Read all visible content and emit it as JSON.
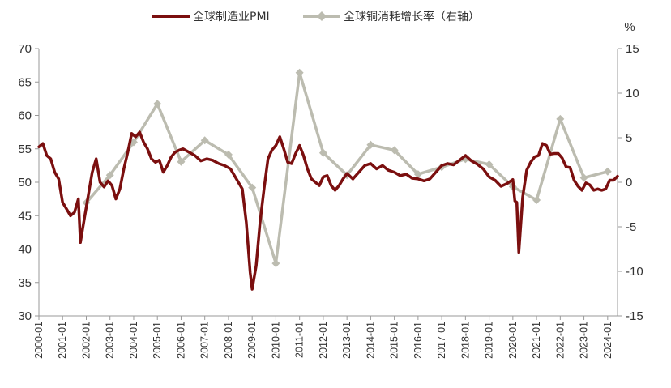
{
  "chart_data": {
    "type": "line",
    "legend": {
      "placement": "top"
    },
    "grid": false,
    "y_left": {
      "min": 30,
      "max": 70,
      "ticks": [
        30,
        35,
        40,
        45,
        50,
        55,
        60,
        65,
        70
      ]
    },
    "y_right": {
      "min": -15,
      "max": 15,
      "ticks": [
        -15,
        -10,
        -5,
        0,
        5,
        10,
        15
      ],
      "unit": "%"
    },
    "x": {
      "start": "2000-01",
      "end": "2024-06",
      "ticks": [
        "2000-01",
        "2001-01",
        "2002-01",
        "2003-01",
        "2004-01",
        "2005-01",
        "2006-01",
        "2007-01",
        "2008-01",
        "2009-01",
        "2010-01",
        "2011-01",
        "2012-01",
        "2013-01",
        "2014-01",
        "2015-01",
        "2016-01",
        "2017-01",
        "2018-01",
        "2019-01",
        "2020-01",
        "2021-01",
        "2022-01",
        "2023-01",
        "2024-01"
      ]
    },
    "series": [
      {
        "name": "全球制造业PMI",
        "axis": "left",
        "color": "#7b0f0f",
        "points": [
          [
            "2000-01",
            55.3
          ],
          [
            "2000-03",
            55.8
          ],
          [
            "2000-05",
            54.0
          ],
          [
            "2000-07",
            53.5
          ],
          [
            "2000-09",
            51.5
          ],
          [
            "2000-11",
            50.5
          ],
          [
            "2001-01",
            47.0
          ],
          [
            "2001-03",
            46.0
          ],
          [
            "2001-05",
            45.0
          ],
          [
            "2001-07",
            45.5
          ],
          [
            "2001-09",
            47.5
          ],
          [
            "2001-10",
            41.0
          ],
          [
            "2001-12",
            44.5
          ],
          [
            "2002-02",
            48.0
          ],
          [
            "2002-04",
            51.5
          ],
          [
            "2002-06",
            53.5
          ],
          [
            "2002-08",
            50.0
          ],
          [
            "2002-10",
            49.3
          ],
          [
            "2002-12",
            50.2
          ],
          [
            "2003-02",
            49.5
          ],
          [
            "2003-04",
            47.5
          ],
          [
            "2003-06",
            49.0
          ],
          [
            "2003-08",
            52.0
          ],
          [
            "2003-10",
            54.5
          ],
          [
            "2003-12",
            57.3
          ],
          [
            "2004-02",
            56.8
          ],
          [
            "2004-04",
            57.5
          ],
          [
            "2004-06",
            56.0
          ],
          [
            "2004-08",
            55.0
          ],
          [
            "2004-10",
            53.5
          ],
          [
            "2004-12",
            53.0
          ],
          [
            "2005-02",
            53.3
          ],
          [
            "2005-04",
            51.5
          ],
          [
            "2005-06",
            52.5
          ],
          [
            "2005-08",
            53.8
          ],
          [
            "2005-10",
            54.5
          ],
          [
            "2005-12",
            54.8
          ],
          [
            "2006-02",
            55.0
          ],
          [
            "2006-05",
            54.5
          ],
          [
            "2006-08",
            54.0
          ],
          [
            "2006-11",
            53.2
          ],
          [
            "2007-02",
            53.5
          ],
          [
            "2007-05",
            53.3
          ],
          [
            "2007-08",
            52.8
          ],
          [
            "2007-11",
            52.5
          ],
          [
            "2008-02",
            52.0
          ],
          [
            "2008-05",
            50.5
          ],
          [
            "2008-08",
            49.0
          ],
          [
            "2008-10",
            44.0
          ],
          [
            "2008-12",
            36.5
          ],
          [
            "2009-01",
            34.0
          ],
          [
            "2009-03",
            37.5
          ],
          [
            "2009-05",
            44.0
          ],
          [
            "2009-07",
            49.0
          ],
          [
            "2009-09",
            53.5
          ],
          [
            "2009-11",
            54.8
          ],
          [
            "2010-01",
            55.5
          ],
          [
            "2010-03",
            56.8
          ],
          [
            "2010-05",
            55.0
          ],
          [
            "2010-07",
            53.0
          ],
          [
            "2010-09",
            52.8
          ],
          [
            "2010-11",
            54.3
          ],
          [
            "2011-01",
            55.5
          ],
          [
            "2011-03",
            54.0
          ],
          [
            "2011-05",
            52.0
          ],
          [
            "2011-07",
            50.5
          ],
          [
            "2011-09",
            50.0
          ],
          [
            "2011-11",
            49.5
          ],
          [
            "2012-01",
            50.8
          ],
          [
            "2012-03",
            51.0
          ],
          [
            "2012-05",
            49.5
          ],
          [
            "2012-07",
            48.8
          ],
          [
            "2012-09",
            49.5
          ],
          [
            "2012-11",
            50.5
          ],
          [
            "2013-01",
            51.3
          ],
          [
            "2013-04",
            50.5
          ],
          [
            "2013-07",
            51.5
          ],
          [
            "2013-10",
            52.5
          ],
          [
            "2014-01",
            52.8
          ],
          [
            "2014-04",
            52.0
          ],
          [
            "2014-07",
            52.5
          ],
          [
            "2014-10",
            51.8
          ],
          [
            "2015-01",
            51.5
          ],
          [
            "2015-04",
            51.0
          ],
          [
            "2015-07",
            51.2
          ],
          [
            "2015-10",
            50.6
          ],
          [
            "2016-01",
            50.5
          ],
          [
            "2016-04",
            50.2
          ],
          [
            "2016-07",
            50.5
          ],
          [
            "2016-10",
            51.5
          ],
          [
            "2017-01",
            52.5
          ],
          [
            "2017-04",
            52.8
          ],
          [
            "2017-07",
            52.6
          ],
          [
            "2017-10",
            53.3
          ],
          [
            "2018-01",
            54.0
          ],
          [
            "2018-04",
            53.2
          ],
          [
            "2018-07",
            52.7
          ],
          [
            "2018-10",
            52.0
          ],
          [
            "2019-01",
            50.8
          ],
          [
            "2019-04",
            50.3
          ],
          [
            "2019-07",
            49.4
          ],
          [
            "2019-10",
            49.8
          ],
          [
            "2020-01",
            50.4
          ],
          [
            "2020-02",
            47.2
          ],
          [
            "2020-03",
            47.0
          ],
          [
            "2020-04",
            39.5
          ],
          [
            "2020-06",
            47.8
          ],
          [
            "2020-08",
            51.8
          ],
          [
            "2020-10",
            53.0
          ],
          [
            "2020-12",
            53.8
          ],
          [
            "2021-02",
            54.0
          ],
          [
            "2021-04",
            55.8
          ],
          [
            "2021-06",
            55.5
          ],
          [
            "2021-08",
            54.2
          ],
          [
            "2021-10",
            54.3
          ],
          [
            "2021-12",
            54.3
          ],
          [
            "2022-02",
            53.6
          ],
          [
            "2022-04",
            52.3
          ],
          [
            "2022-06",
            52.2
          ],
          [
            "2022-08",
            50.3
          ],
          [
            "2022-10",
            49.4
          ],
          [
            "2022-12",
            48.8
          ],
          [
            "2023-02",
            49.9
          ],
          [
            "2023-04",
            49.6
          ],
          [
            "2023-06",
            48.8
          ],
          [
            "2023-08",
            49.0
          ],
          [
            "2023-10",
            48.8
          ],
          [
            "2023-12",
            49.0
          ],
          [
            "2024-02",
            50.3
          ],
          [
            "2024-04",
            50.3
          ],
          [
            "2024-06",
            50.9
          ]
        ]
      },
      {
        "name": "全球铜消耗增长率（右轴）",
        "axis": "right",
        "color": "#bcbcb0",
        "points": [
          [
            "2002-01",
            -2.3
          ],
          [
            "2003-01",
            0.8
          ],
          [
            "2004-01",
            4.5
          ],
          [
            "2005-01",
            8.8
          ],
          [
            "2006-01",
            2.3
          ],
          [
            "2007-01",
            4.7
          ],
          [
            "2008-01",
            3.1
          ],
          [
            "2009-01",
            -0.6
          ],
          [
            "2010-01",
            -9.1
          ],
          [
            "2011-01",
            12.3
          ],
          [
            "2012-01",
            3.3
          ],
          [
            "2013-01",
            0.8
          ],
          [
            "2014-01",
            4.2
          ],
          [
            "2015-01",
            3.6
          ],
          [
            "2016-01",
            0.9
          ],
          [
            "2017-01",
            1.7
          ],
          [
            "2018-01",
            2.6
          ],
          [
            "2019-01",
            2.0
          ],
          [
            "2020-01",
            -0.5
          ],
          [
            "2021-01",
            -2.0
          ],
          [
            "2022-01",
            7.1
          ],
          [
            "2023-01",
            0.5
          ],
          [
            "2024-01",
            1.2
          ]
        ]
      }
    ]
  }
}
